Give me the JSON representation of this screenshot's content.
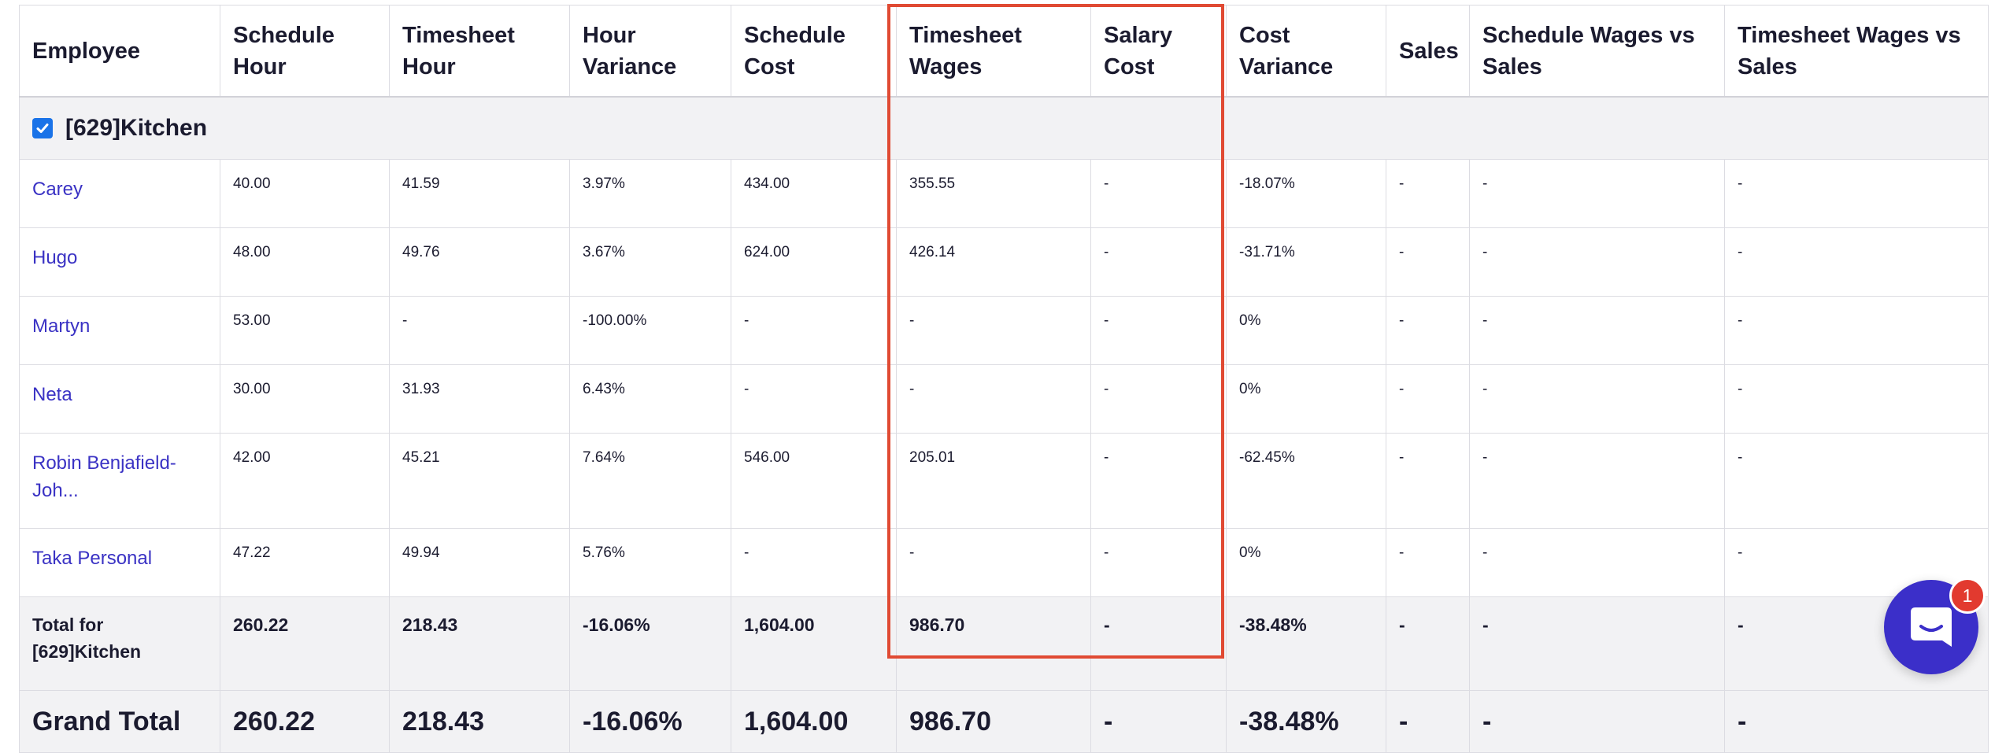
{
  "columns": [
    "Employee",
    "Schedule Hour",
    "Timesheet Hour",
    "Hour Variance",
    "Schedule Cost",
    "Timesheet Wages",
    "Salary Cost",
    "Cost Variance",
    "Sales",
    "Schedule Wages vs Sales",
    "Timesheet Wages vs Sales"
  ],
  "group": {
    "label": "[629]Kitchen",
    "checked": true
  },
  "rows": [
    {
      "name": "Carey",
      "cells": [
        "40.00",
        "41.59",
        "3.97%",
        "434.00",
        "355.55",
        "-",
        "-18.07%",
        "-",
        "-",
        "-"
      ]
    },
    {
      "name": "Hugo",
      "cells": [
        "48.00",
        "49.76",
        "3.67%",
        "624.00",
        "426.14",
        "-",
        "-31.71%",
        "-",
        "-",
        "-"
      ]
    },
    {
      "name": "Martyn",
      "cells": [
        "53.00",
        "-",
        "-100.00%",
        "-",
        "-",
        "-",
        "0%",
        "-",
        "-",
        "-"
      ]
    },
    {
      "name": "Neta",
      "cells": [
        "30.00",
        "31.93",
        "6.43%",
        "-",
        "-",
        "-",
        "0%",
        "-",
        "-",
        "-"
      ]
    },
    {
      "name": "Robin Benjafield-Joh...",
      "cells": [
        "42.00",
        "45.21",
        "7.64%",
        "546.00",
        "205.01",
        "-",
        "-62.45%",
        "-",
        "-",
        "-"
      ]
    },
    {
      "name": "Taka Personal",
      "cells": [
        "47.22",
        "49.94",
        "5.76%",
        "-",
        "-",
        "-",
        "0%",
        "-",
        "-",
        "-"
      ]
    }
  ],
  "group_total": {
    "label": "Total for [629]Kitchen",
    "cells": [
      "260.22",
      "218.43",
      "-16.06%",
      "1,604.00",
      "986.70",
      "-",
      "-38.48%",
      "-",
      "-",
      "-"
    ]
  },
  "grand_total": {
    "label": "Grand Total",
    "cells": [
      "260.22",
      "218.43",
      "-16.06%",
      "1,604.00",
      "986.70",
      "-",
      "-38.48%",
      "-",
      "-",
      "-"
    ]
  },
  "chat": {
    "icon": "chat-bubble-icon",
    "badge": "1"
  },
  "colors": {
    "link": "#3a32c4",
    "highlight_border": "#e04a33",
    "chat_button": "#3b2fc9",
    "badge": "#e23a2f",
    "checkbox": "#1a73e8"
  }
}
